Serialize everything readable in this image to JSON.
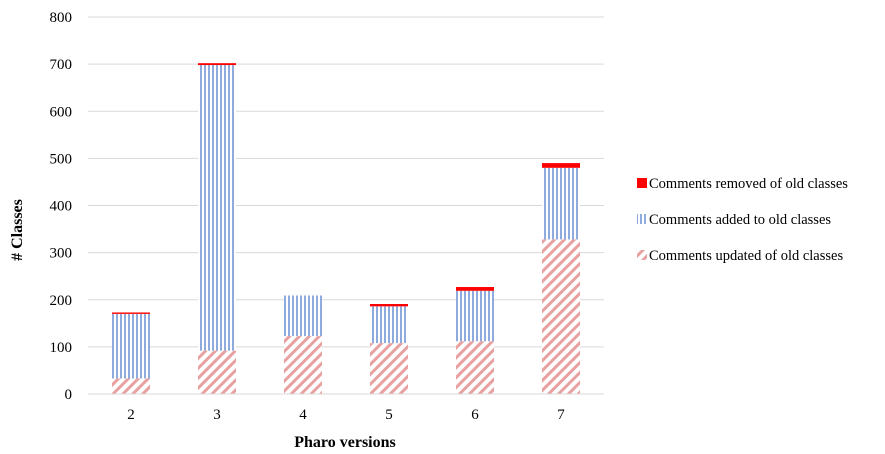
{
  "chart_data": {
    "type": "bar",
    "stacked": true,
    "xlabel": "Pharo versions",
    "ylabel": "# Classes",
    "ylim": [
      0,
      800
    ],
    "yticks": [
      0,
      100,
      200,
      300,
      400,
      500,
      600,
      700,
      800
    ],
    "grid": "horizontal",
    "legend_position": "right",
    "categories": [
      "2",
      "3",
      "4",
      "5",
      "6",
      "7"
    ],
    "series": [
      {
        "name": "Comments updated of old classes",
        "values": [
          33,
          92,
          123,
          108,
          112,
          328
        ],
        "pattern": "diagonal-hatch",
        "color": "#e8a0a0"
      },
      {
        "name": "Comments added to old classes",
        "values": [
          137,
          606,
          86,
          78,
          107,
          152
        ],
        "pattern": "vertical-lines",
        "color": "#8faadc"
      },
      {
        "name": "Comments removed of old classes",
        "values": [
          3,
          4,
          0,
          5,
          8,
          10
        ],
        "pattern": "solid",
        "color": "#ff0000"
      }
    ]
  }
}
